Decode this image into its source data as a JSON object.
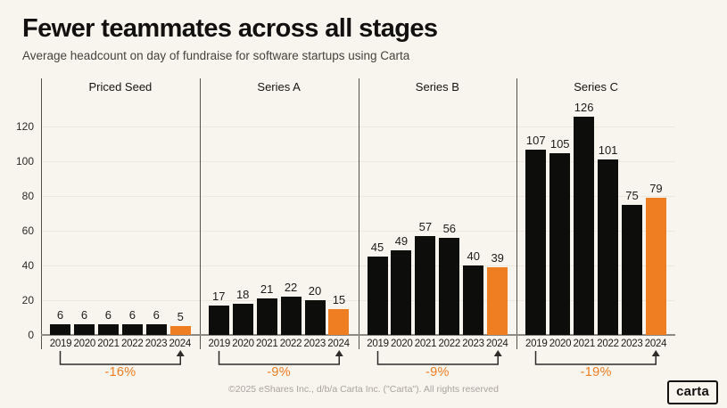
{
  "header": {
    "title": "Fewer teammates across all stages",
    "subtitle": "Average headcount on day of fundraise for software startups using Carta"
  },
  "chart_data": {
    "type": "bar",
    "title": "Fewer teammates across all stages",
    "subtitle": "Average headcount on day of fundraise for software startups using Carta",
    "categories": [
      "2019",
      "2020",
      "2021",
      "2022",
      "2023",
      "2024"
    ],
    "panels": [
      {
        "label": "Priced Seed",
        "values": [
          6,
          6,
          6,
          6,
          6,
          5
        ],
        "change": "-16%"
      },
      {
        "label": "Series A",
        "values": [
          17,
          18,
          21,
          22,
          20,
          15
        ],
        "change": "-9%"
      },
      {
        "label": "Series B",
        "values": [
          45,
          49,
          57,
          56,
          40,
          39
        ],
        "change": "-9%"
      },
      {
        "label": "Series C",
        "values": [
          107,
          105,
          126,
          101,
          75,
          79
        ],
        "change": "-19%"
      }
    ],
    "y_ticks": [
      0,
      20,
      40,
      60,
      80,
      100,
      120
    ],
    "ylim": [
      0,
      148
    ],
    "grid": true,
    "highlight_category": "2024",
    "colors": {
      "bar": "#0D0D0C",
      "highlight": "#EF7D22",
      "percent_text": "#EF7D22",
      "background": "#F8F5EF",
      "gridline": "#ECE8DF",
      "axis_line": "#8D8A84",
      "separator": "#55524B"
    }
  },
  "footer": {
    "copyright": "©2025 eShares Inc., d/b/a Carta Inc. (\"Carta\"). All rights reserved",
    "logo_text": "carta"
  }
}
